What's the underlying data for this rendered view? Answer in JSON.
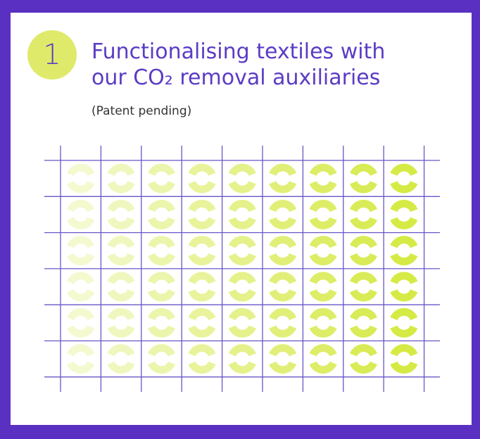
{
  "step_number": "1",
  "title": {
    "line1": "Functionalising textiles with",
    "line2": "our CO₂ removal auxiliaries"
  },
  "subtitle": "(Patent pending)"
}
